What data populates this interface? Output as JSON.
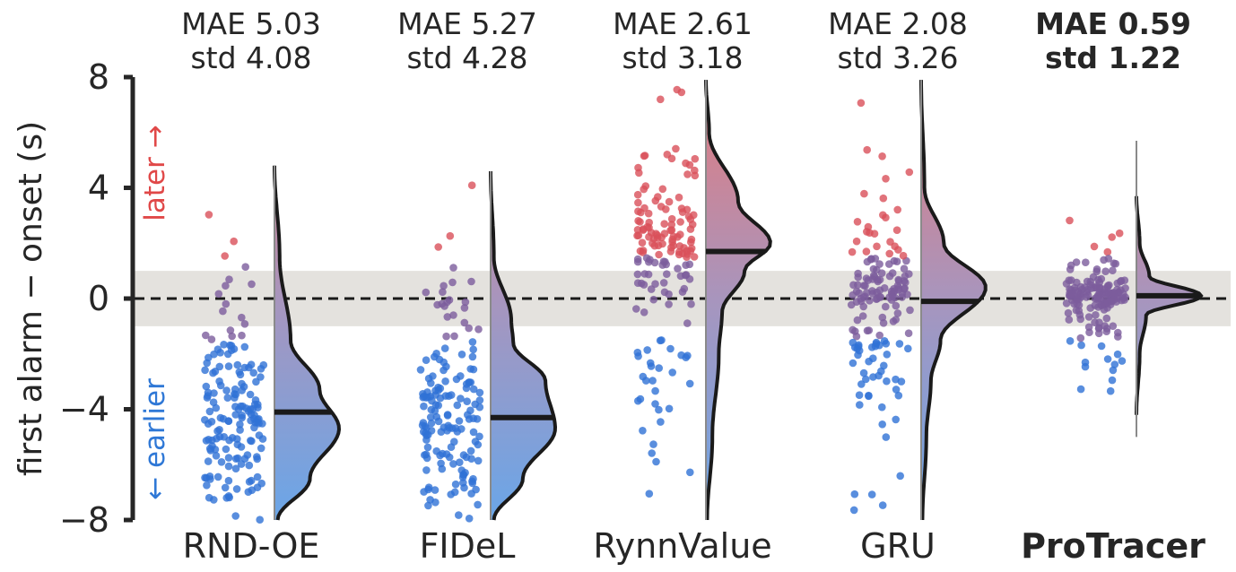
{
  "chart_data": {
    "type": "raincloud",
    "ylabel": "first alarm − onset (s)",
    "ylim": [
      -8,
      8
    ],
    "yticks": [
      {
        "value": 8,
        "label": "8"
      },
      {
        "value": 4,
        "label": "4"
      },
      {
        "value": 0,
        "label": "0"
      },
      {
        "value": -4,
        "label": "−4"
      },
      {
        "value": -8,
        "label": "−8"
      }
    ],
    "tolerance_band": [
      -1,
      1
    ],
    "reference_line": 0,
    "annotations": {
      "later": {
        "text": "later →",
        "color": "#e04848"
      },
      "earlier": {
        "text": "← earlier",
        "color": "#2f78d6"
      }
    },
    "colors": {
      "late": "#e37a7d",
      "early": "#6aa6e8",
      "point_late": "#d9505a",
      "point_mid": "#7c5c9c",
      "point_early": "#2f72d6",
      "band": "#e4e2de",
      "axis": "#262626"
    },
    "series": [
      {
        "name": "RND-OE",
        "mae_label": "MAE 5.03",
        "std_label": "std 4.08",
        "mean": -4.1,
        "min": -8.0,
        "max": 4.8,
        "bold": false,
        "kde": [
          {
            "y": -8,
            "d": 0.05
          },
          {
            "y": -6.5,
            "d": 0.55
          },
          {
            "y": -4.7,
            "d": 1.0
          },
          {
            "y": -3.3,
            "d": 0.7
          },
          {
            "y": -1.5,
            "d": 0.25
          },
          {
            "y": 1.5,
            "d": 0.08
          },
          {
            "y": 4.8,
            "d": 0.0
          }
        ]
      },
      {
        "name": "FIDeL",
        "mae_label": "MAE 5.27",
        "std_label": "std 4.28",
        "mean": -4.3,
        "min": -8.0,
        "max": 4.6,
        "bold": false,
        "kde": [
          {
            "y": -8,
            "d": 0.05
          },
          {
            "y": -6.5,
            "d": 0.5
          },
          {
            "y": -4.7,
            "d": 1.0
          },
          {
            "y": -3.0,
            "d": 0.85
          },
          {
            "y": -1.6,
            "d": 0.35
          },
          {
            "y": -0.8,
            "d": 0.32
          },
          {
            "y": 1.5,
            "d": 0.05
          },
          {
            "y": 4.6,
            "d": 0.0
          }
        ]
      },
      {
        "name": "RynnValue",
        "mae_label": "MAE 2.61",
        "std_label": "std 3.18",
        "mean": 1.7,
        "min": -8.0,
        "max": 7.9,
        "bold": false,
        "kde": [
          {
            "y": -8,
            "d": 0.02
          },
          {
            "y": -5.0,
            "d": 0.1
          },
          {
            "y": -2.0,
            "d": 0.2
          },
          {
            "y": -0.5,
            "d": 0.25
          },
          {
            "y": 1.0,
            "d": 0.6
          },
          {
            "y": 2.0,
            "d": 1.0
          },
          {
            "y": 3.5,
            "d": 0.5
          },
          {
            "y": 6.0,
            "d": 0.05
          },
          {
            "y": 7.9,
            "d": 0.0
          }
        ]
      },
      {
        "name": "GRU",
        "mae_label": "MAE 2.08",
        "std_label": "std 3.26",
        "mean": -0.1,
        "min": -8.0,
        "max": 7.9,
        "bold": false,
        "kde": [
          {
            "y": -8,
            "d": 0.02
          },
          {
            "y": -5.0,
            "d": 0.08
          },
          {
            "y": -3.0,
            "d": 0.15
          },
          {
            "y": -1.5,
            "d": 0.3
          },
          {
            "y": 0.4,
            "d": 1.0
          },
          {
            "y": 2.0,
            "d": 0.35
          },
          {
            "y": 4.0,
            "d": 0.05
          },
          {
            "y": 7.9,
            "d": 0.0
          }
        ]
      },
      {
        "name": "ProTracer",
        "mae_label": "MAE 0.59",
        "std_label": "std 1.22",
        "mean": 0.1,
        "min": -5.0,
        "max": 5.7,
        "bold": true,
        "kde": [
          {
            "y": -4.2,
            "d": 0.0
          },
          {
            "y": -2.0,
            "d": 0.05
          },
          {
            "y": -0.6,
            "d": 0.15
          },
          {
            "y": 0.1,
            "d": 1.0
          },
          {
            "y": 0.8,
            "d": 0.2
          },
          {
            "y": 2.0,
            "d": 0.05
          },
          {
            "y": 3.7,
            "d": 0.0
          }
        ]
      }
    ]
  }
}
